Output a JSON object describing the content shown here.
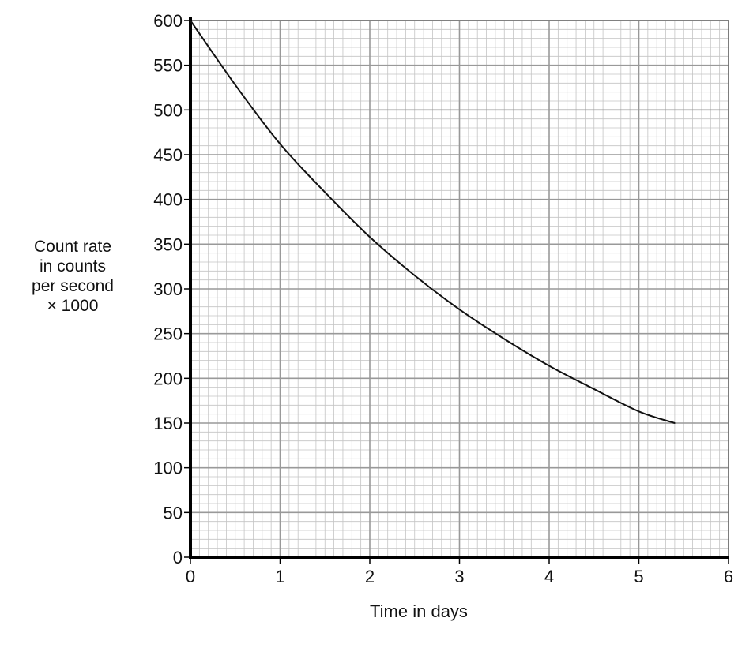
{
  "chart_data": {
    "type": "line",
    "title": "",
    "xlabel": "Time in days",
    "ylabel_lines": [
      "Count rate",
      "in counts",
      "per second",
      "× 1000"
    ],
    "xlim": [
      0,
      6
    ],
    "ylim": [
      0,
      600
    ],
    "x_ticks": [
      "0",
      "1",
      "2",
      "3",
      "4",
      "5",
      "6"
    ],
    "y_ticks": [
      "0",
      "50",
      "100",
      "150",
      "200",
      "250",
      "300",
      "350",
      "400",
      "450",
      "500",
      "550",
      "600"
    ],
    "grid": true,
    "series": [
      {
        "x": [
          0,
          0.5,
          1,
          1.5,
          2,
          2.5,
          3,
          3.5,
          4,
          4.5,
          5,
          5.4
        ],
        "y": [
          600,
          528,
          462,
          408,
          358,
          315,
          277,
          244,
          214,
          188,
          163,
          150
        ]
      }
    ],
    "colors": {
      "curve": "#111111",
      "major_grid": "#999999",
      "minor_grid": "#c4c4c4",
      "axis": "#000000"
    }
  }
}
